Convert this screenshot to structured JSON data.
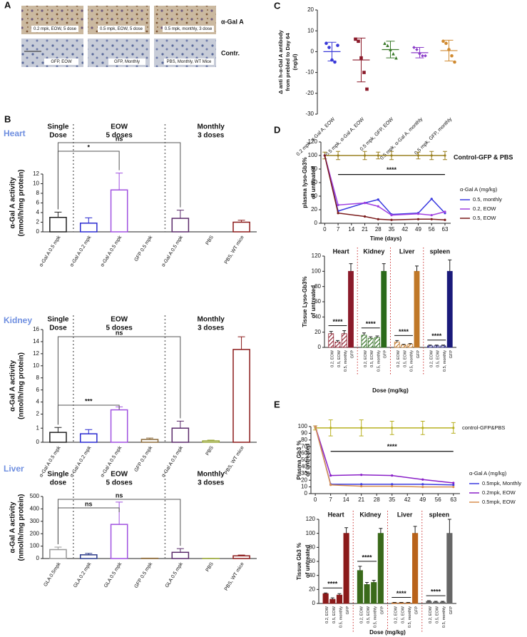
{
  "panel_labels": [
    "A",
    "B",
    "C",
    "D",
    "E"
  ],
  "panel_a": {
    "stain_label": "α-Gal A",
    "control_label": "Contr.",
    "treated": [
      "0.2 mpk, EOW, 5 dose",
      "0.5 mpk, EOW, 5 dose",
      "0.5 mpk, monthly, 3 dose"
    ],
    "controls": [
      "GFP, EOW",
      "GFP, Monthly",
      "PBS, Monthly, WT Mice"
    ]
  },
  "chart_data": [
    {
      "type": "bar",
      "title": "Heart",
      "y_label": [
        "α-Gal A activity",
        "(nmol/h/mg protein)"
      ],
      "group_labels": [
        [
          "Single",
          "Dose"
        ],
        [
          "EOW",
          "5 doses"
        ],
        [
          "Monthly",
          "3 doses"
        ]
      ],
      "categories": [
        "α-Gal A 0.5 mpk",
        "α-Gal A 0.2 mpk",
        "α-Gal A 0.5 mpk",
        "GFP 0.5 mpk",
        "α-Gal A 0.5 mpk",
        "PBS",
        "PBS, WT mice"
      ],
      "values": [
        3.0,
        1.8,
        8.7,
        0,
        2.8,
        0,
        2.0
      ],
      "errors": [
        1.1,
        1.1,
        3.5,
        0,
        1.7,
        0,
        0.4
      ],
      "colors": [
        "#222222",
        "#2a2ad0",
        "#a050e0",
        "#8b6a3a",
        "#5a2a6a",
        "#9aa83a",
        "#8b1a1a"
      ],
      "ylim": [
        0,
        12
      ],
      "yticks": [
        0,
        2,
        4,
        6,
        8,
        10,
        12
      ],
      "annotations": [
        "*",
        "ns"
      ]
    },
    {
      "type": "bar",
      "title": "Kidney",
      "y_label": [
        "α-Gal A activity",
        "(nmol/h/mg protein)"
      ],
      "group_labels": [
        [
          "Single",
          "Dose"
        ],
        [
          "EOW",
          "5 doses"
        ],
        [
          "Monthly",
          "3 doses"
        ]
      ],
      "categories": [
        "α-Gal A 0.5 mpk",
        "α-Gal A 0.2 mpk",
        "α-Gal A  0.5 mpk",
        "GFP 0.5 mpk",
        "α-Gal A 0.5 mpk",
        "PBS",
        "PBS, WT mice"
      ],
      "values": [
        0.7,
        0.6,
        2.7,
        0.2,
        1.0,
        0.1,
        12.7
      ],
      "errors": [
        0.35,
        0.3,
        0.5,
        0.1,
        0.5,
        0.05,
        2.1
      ],
      "colors": [
        "#222222",
        "#2a2ad0",
        "#a050e0",
        "#8b6a3a",
        "#5a2a6a",
        "#9aa83a",
        "#8b1a1a"
      ],
      "ylim": [
        0,
        16
      ],
      "ybreak": 2,
      "yticks": [
        0,
        1,
        2,
        4,
        6,
        8,
        10,
        12,
        14,
        16
      ],
      "annotations": [
        "***",
        "ns"
      ]
    },
    {
      "type": "bar",
      "title": "Liver",
      "y_label": [
        "α-Gal A activity",
        "(nmol/h/mg protein)"
      ],
      "group_labels": [
        [
          "Single",
          "dose"
        ],
        [
          "EOW",
          "5 doses"
        ],
        [
          "Monthly",
          "3 doses"
        ]
      ],
      "categories": [
        "GLA 0.5mpk",
        "GLA 0.2 mpk",
        "GLA 0.5 mpk",
        "GFP 0.5 mpk",
        "GLA 0.5 mpk",
        "PBS",
        "PBS, WT mice"
      ],
      "values": [
        72,
        30,
        275,
        2,
        50,
        1,
        22
      ],
      "errors": [
        20,
        12,
        180,
        1,
        30,
        0.5,
        6
      ],
      "colors": [
        "#999999",
        "#2a3a8a",
        "#a050e0",
        "#8b6a3a",
        "#5a2a6a",
        "#9aa83a",
        "#8b1a1a"
      ],
      "ylim": [
        0,
        500
      ],
      "yticks": [
        0,
        100,
        200,
        300,
        400,
        500
      ],
      "annotations": [
        "ns",
        "ns"
      ]
    },
    {
      "type": "dot",
      "y_label": [
        "Δ anti h-α-Gal A antibody",
        "from prebled to Day 64",
        "(ng/μl)"
      ],
      "categories": [
        "0.2 mpk, α-Gal A, EOW",
        "0.5 mpk, α-Gal A, EOW",
        "0.5 mpk, GFP, EOW",
        "0.5 mpk, α-Gal A, monthly",
        "0.5 mpk, GFP, monthly"
      ],
      "points": [
        [
          4,
          2,
          -4,
          -5,
          3
        ],
        [
          6,
          5,
          -3,
          -10,
          -18
        ],
        [
          4,
          3,
          1,
          -1,
          -3
        ],
        [
          2,
          1,
          -1,
          -2,
          -2
        ],
        [
          5,
          4,
          1,
          -2,
          -5
        ]
      ],
      "means": [
        0,
        -4,
        1,
        -0.5,
        0.5
      ],
      "sd": [
        4.5,
        10.5,
        4,
        2.5,
        5
      ],
      "colors": [
        "#3a3ad8",
        "#8b1a2a",
        "#3a7a2a",
        "#8a3ac8",
        "#d08a30"
      ],
      "ylim": [
        -30,
        20
      ],
      "yticks": [
        -30,
        -20,
        -10,
        0,
        10,
        20
      ]
    },
    {
      "type": "line",
      "y_label": [
        "plasma lyso-Gb3%",
        "of untreated"
      ],
      "x_label": "Time (days)",
      "x": [
        0,
        7,
        21,
        28,
        35,
        49,
        56,
        63
      ],
      "xlim": [
        -2,
        66
      ],
      "xticks": [
        0,
        7,
        14,
        21,
        28,
        35,
        42,
        49,
        56,
        63
      ],
      "ylim": [
        0,
        120
      ],
      "yticks": [
        0,
        20,
        40,
        60,
        80,
        100,
        120
      ],
      "legend_title": "α-Gal A (mg/kg)",
      "annotation": "****",
      "series": [
        {
          "name": "0.5, monthly",
          "color": "#3a3ae0",
          "values": [
            100,
            18,
            30,
            35,
            13,
            15,
            36,
            15
          ]
        },
        {
          "name": "0.2, EOW",
          "color": "#a040e0",
          "values": [
            100,
            27,
            30,
            25,
            12,
            14,
            12,
            17
          ]
        },
        {
          "name": "0.5, EOW",
          "color": "#7a1a1a",
          "values": [
            100,
            15,
            10,
            6,
            5,
            6,
            6,
            5
          ]
        }
      ],
      "control": {
        "name": "Control-GFP & PBS",
        "color": "#9a8020",
        "values": [
          100,
          100,
          100,
          100,
          100,
          100,
          100,
          100
        ],
        "errors": [
          5,
          6,
          6,
          5,
          6,
          5,
          6,
          6
        ]
      }
    },
    {
      "type": "grouped_bar",
      "y_label": [
        "Tissue Lyso-Gb3%",
        "of untreated"
      ],
      "x_label": "Dose (mg/kg)",
      "groups": [
        "Heart",
        "Kidney",
        "Liver",
        "spleen"
      ],
      "categories": [
        "0.2, EOW",
        "0.5, EOW",
        "0.5, monthly",
        "GFP"
      ],
      "values": [
        [
          18,
          7,
          18,
          100
        ],
        [
          16,
          12,
          13,
          100
        ],
        [
          7,
          3,
          4,
          100
        ],
        [
          2,
          2,
          2,
          100
        ]
      ],
      "errors": [
        [
          3,
          2,
          4,
          10
        ],
        [
          3,
          2,
          2,
          10
        ],
        [
          2,
          1,
          1,
          7
        ],
        [
          1,
          1,
          1,
          15
        ]
      ],
      "colors": [
        "#8b1a2a",
        "#2a6a1a",
        "#c07828",
        "#1a1a7a"
      ],
      "hatch_treated": true,
      "ylim": [
        0,
        120
      ],
      "yticks": [
        0,
        20,
        40,
        60,
        80,
        100,
        120
      ],
      "annotations": [
        "****",
        "****",
        "****",
        "****"
      ]
    },
    {
      "type": "line",
      "y_label": [
        "Plasma Gb3 %",
        "of untreated"
      ],
      "x": [
        0,
        7,
        21,
        35,
        49,
        63
      ],
      "xlim": [
        -2,
        66
      ],
      "xticks": [
        0,
        7,
        14,
        21,
        28,
        35,
        42,
        49,
        56,
        63
      ],
      "ylim": [
        0,
        100
      ],
      "yticks": [
        0,
        10,
        20,
        30,
        40,
        50,
        60,
        70,
        80,
        90,
        100
      ],
      "legend_title": "α-Gal A (mg/kg)",
      "annotation": "****",
      "series": [
        {
          "name": "0.5mpk, Monthly",
          "color": "#3a3ae0",
          "values": [
            100,
            14,
            14,
            14,
            14,
            13
          ]
        },
        {
          "name": "0.2mpk, EOW",
          "color": "#8a20c8",
          "values": [
            100,
            27,
            28,
            27,
            21,
            16
          ]
        },
        {
          "name": "0.5mpk, EOW",
          "color": "#d89050",
          "values": [
            100,
            13,
            11,
            11,
            10,
            10
          ]
        }
      ],
      "control": {
        "name": "control-GFP&PBS",
        "color": "#b8b020",
        "values": [
          98,
          98,
          98,
          98,
          98,
          98
        ],
        "errors": [
          3,
          12,
          12,
          10,
          10,
          8
        ]
      }
    },
    {
      "type": "grouped_bar",
      "y_label": [
        "Tissue Gb3 %",
        "of untreated"
      ],
      "x_label": "Dose (mg/kg)",
      "groups": [
        "Heart",
        "Kidney",
        "Liver",
        "spleen"
      ],
      "categories": [
        "0.2, EOW",
        "0.5, EOW",
        "0.5, monthly",
        "GFP"
      ],
      "values": [
        [
          14,
          6,
          12,
          100
        ],
        [
          47,
          27,
          30,
          100
        ],
        [
          1,
          1,
          1,
          100
        ],
        [
          3,
          2,
          2,
          100
        ]
      ],
      "errors": [
        [
          1,
          2,
          2,
          8
        ],
        [
          6,
          3,
          3,
          7
        ],
        [
          0.5,
          0.5,
          0.5,
          10
        ],
        [
          1,
          1,
          1,
          20
        ]
      ],
      "colors": [
        "#8b1a1a",
        "#3a6a1a",
        "#b8621a",
        "#666666"
      ],
      "ylim": [
        0,
        120
      ],
      "yticks": [
        0,
        20,
        40,
        60,
        80,
        100,
        120
      ],
      "annotations": [
        "****",
        "****",
        "****",
        "****"
      ]
    }
  ]
}
